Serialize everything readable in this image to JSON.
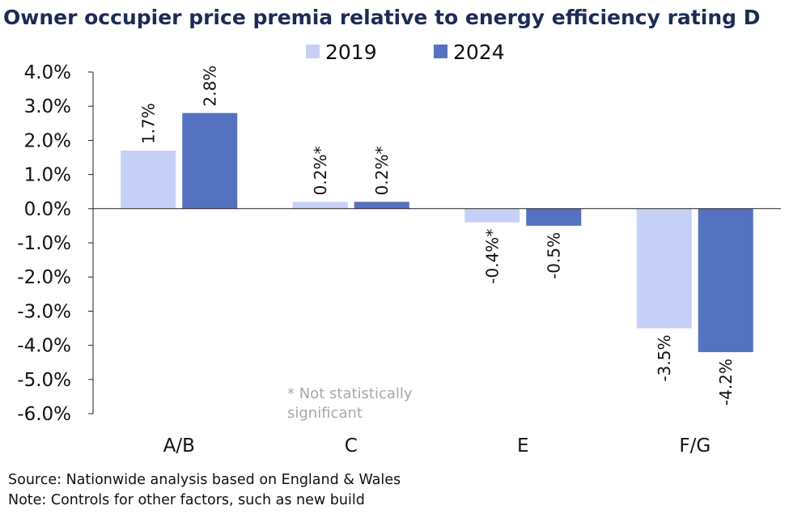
{
  "chart_data": {
    "type": "bar",
    "title": "Owner occupier price premia relative to energy efficiency rating D",
    "categories": [
      "A/B",
      "C",
      "E",
      "F/G"
    ],
    "series": [
      {
        "name": "2019",
        "color": "#c6d0f7",
        "values": [
          1.7,
          0.2,
          -0.4,
          -3.5
        ],
        "labels": [
          "1.7%",
          "0.2%*",
          "-0.4%*",
          "-3.5%"
        ]
      },
      {
        "name": "2024",
        "color": "#5472c0",
        "values": [
          2.8,
          0.2,
          -0.5,
          -4.2
        ],
        "labels": [
          "2.8%",
          "0.2%*",
          "-0.5%",
          "-4.2%"
        ]
      }
    ],
    "ylim": [
      -6.0,
      4.0
    ],
    "yticks": [
      4.0,
      3.0,
      2.0,
      1.0,
      0.0,
      -1.0,
      -2.0,
      -3.0,
      -4.0,
      -5.0,
      -6.0
    ],
    "ytick_labels": [
      "4.0%",
      "3.0%",
      "2.0%",
      "1.0%",
      "0.0%",
      "-1.0%",
      "-2.0%",
      "-3.0%",
      "-4.0%",
      "-5.0%",
      "-6.0%"
    ],
    "xlabel": "",
    "ylabel": "",
    "grid": false,
    "legend_position": "top-center",
    "annotation_lines": [
      "* Not statistically",
      "significant"
    ]
  },
  "footer": {
    "source": "Source: Nationwide analysis based on England & Wales",
    "note": "Note: Controls for other factors, such as new build"
  }
}
